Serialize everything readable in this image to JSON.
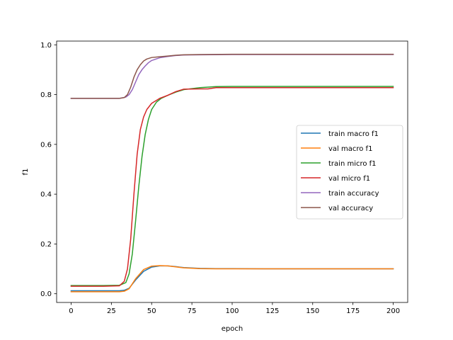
{
  "chart_data": {
    "type": "line",
    "xlabel": "epoch",
    "ylabel": "f1",
    "xlim": [
      -9,
      209
    ],
    "ylim": [
      -0.035,
      1.015
    ],
    "xticks": [
      0,
      25,
      50,
      75,
      100,
      125,
      150,
      175,
      200
    ],
    "yticks": [
      0.0,
      0.2,
      0.4,
      0.6,
      0.8,
      1.0
    ],
    "xtick_labels": [
      "0",
      "25",
      "50",
      "75",
      "100",
      "125",
      "150",
      "175",
      "200"
    ],
    "ytick_labels": [
      "0.0",
      "0.2",
      "0.4",
      "0.6",
      "0.8",
      "1.0"
    ],
    "grid": false,
    "legend_position": "center-right",
    "series": [
      {
        "name": "train macro f1",
        "color": "#1f77b4",
        "x": [
          0,
          10,
          20,
          30,
          33,
          36,
          40,
          45,
          50,
          55,
          60,
          65,
          70,
          80,
          90,
          100,
          120,
          150,
          175,
          200
        ],
        "y": [
          0.012,
          0.012,
          0.012,
          0.012,
          0.014,
          0.022,
          0.055,
          0.09,
          0.107,
          0.112,
          0.112,
          0.109,
          0.105,
          0.102,
          0.101,
          0.101,
          0.1,
          0.1,
          0.1,
          0.1
        ]
      },
      {
        "name": "val macro f1",
        "color": "#ff7f0e",
        "x": [
          0,
          10,
          20,
          30,
          33,
          36,
          40,
          45,
          50,
          55,
          60,
          65,
          70,
          80,
          90,
          100,
          120,
          150,
          175,
          200
        ],
        "y": [
          0.008,
          0.008,
          0.008,
          0.008,
          0.01,
          0.02,
          0.06,
          0.097,
          0.111,
          0.113,
          0.112,
          0.108,
          0.104,
          0.101,
          0.1,
          0.1,
          0.1,
          0.1,
          0.1,
          0.1
        ]
      },
      {
        "name": "train micro f1",
        "color": "#2ca02c",
        "x": [
          0,
          10,
          20,
          30,
          34,
          36,
          38,
          40,
          42,
          44,
          46,
          48,
          50,
          53,
          56,
          60,
          65,
          70,
          80,
          90,
          100,
          120,
          150,
          175,
          200
        ],
        "y": [
          0.033,
          0.033,
          0.033,
          0.034,
          0.045,
          0.08,
          0.16,
          0.29,
          0.43,
          0.55,
          0.64,
          0.7,
          0.74,
          0.77,
          0.785,
          0.797,
          0.81,
          0.82,
          0.828,
          0.832,
          0.833,
          0.833,
          0.833,
          0.833,
          0.833
        ]
      },
      {
        "name": "val micro f1",
        "color": "#d62728",
        "x": [
          0,
          10,
          20,
          30,
          33,
          35,
          37,
          39,
          41,
          43,
          45,
          47,
          50,
          55,
          60,
          65,
          70,
          80,
          85,
          90,
          100,
          150,
          200
        ],
        "y": [
          0.03,
          0.03,
          0.03,
          0.032,
          0.05,
          0.1,
          0.22,
          0.4,
          0.56,
          0.66,
          0.71,
          0.74,
          0.765,
          0.785,
          0.797,
          0.812,
          0.822,
          0.823,
          0.823,
          0.828,
          0.828,
          0.828,
          0.828
        ]
      },
      {
        "name": "train accuracy",
        "color": "#9467bd",
        "x": [
          0,
          10,
          20,
          30,
          34,
          36,
          38,
          40,
          42,
          44,
          46,
          48,
          50,
          55,
          60,
          65,
          70,
          80,
          100,
          150,
          200
        ],
        "y": [
          0.785,
          0.785,
          0.785,
          0.785,
          0.79,
          0.8,
          0.82,
          0.85,
          0.88,
          0.9,
          0.915,
          0.928,
          0.937,
          0.948,
          0.953,
          0.957,
          0.959,
          0.96,
          0.961,
          0.961,
          0.961
        ]
      },
      {
        "name": "val accuracy",
        "color": "#8c564b",
        "x": [
          0,
          10,
          20,
          30,
          33,
          35,
          37,
          39,
          41,
          43,
          45,
          47,
          50,
          55,
          60,
          65,
          70,
          80,
          100,
          150,
          200
        ],
        "y": [
          0.785,
          0.785,
          0.785,
          0.785,
          0.788,
          0.8,
          0.83,
          0.87,
          0.9,
          0.92,
          0.935,
          0.943,
          0.949,
          0.952,
          0.955,
          0.958,
          0.96,
          0.961,
          0.962,
          0.962,
          0.962
        ]
      }
    ]
  }
}
